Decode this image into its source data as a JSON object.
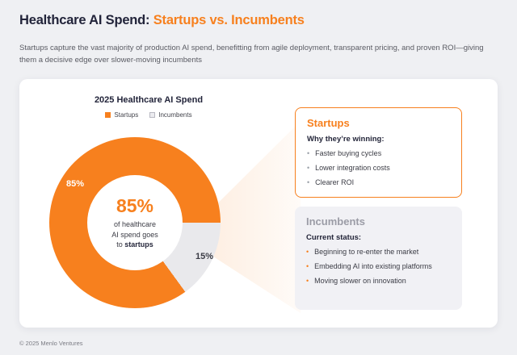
{
  "page": {
    "title_prefix": "Healthcare AI Spend: ",
    "title_highlight": "Startups vs. Incumbents",
    "subtitle": "Startups capture the vast majority of production AI spend, benefitting from agile deployment, transparent pricing, and proven ROI—giving them a decisive edge over slower-moving incumbents",
    "footer": "© 2025 Menlo Ventures"
  },
  "chart": {
    "title": "2025 Healthcare AI Spend",
    "legend": [
      {
        "label": "Startups",
        "color": "#F7801E"
      },
      {
        "label": "Incumbents",
        "color": "#E9E9EC"
      }
    ],
    "slice_labels": {
      "startups": "85%",
      "incumbents": "15%"
    },
    "center": {
      "pct": "85%",
      "line1": "of healthcare",
      "line2": "AI spend goes",
      "line3_prefix": "to ",
      "line3_bold": "startups"
    }
  },
  "chart_data": {
    "type": "pie",
    "title": "2025 Healthcare AI Spend",
    "categories": [
      "Startups",
      "Incumbents"
    ],
    "values": [
      85,
      15
    ],
    "unit": "percent",
    "colors": [
      "#F7801E",
      "#E9E9EC"
    ],
    "legend_position": "top",
    "donut": true,
    "center_label": "85% of healthcare AI spend goes to startups"
  },
  "panels": {
    "startups": {
      "heading": "Startups",
      "subheading": "Why they’re winning:",
      "bullets": [
        "Faster buying cycles",
        "Lower integration costs",
        "Clearer ROI"
      ]
    },
    "incumbents": {
      "heading": "Incumbents",
      "subheading": "Current status:",
      "bullets": [
        "Beginning to re-enter the market",
        "Embedding AI into existing platforms",
        "Moving slower on innovation"
      ]
    }
  },
  "colors": {
    "accent": "#F7801E",
    "incumbent_gray": "#E9E9EC",
    "background": "#EFF0F3"
  }
}
